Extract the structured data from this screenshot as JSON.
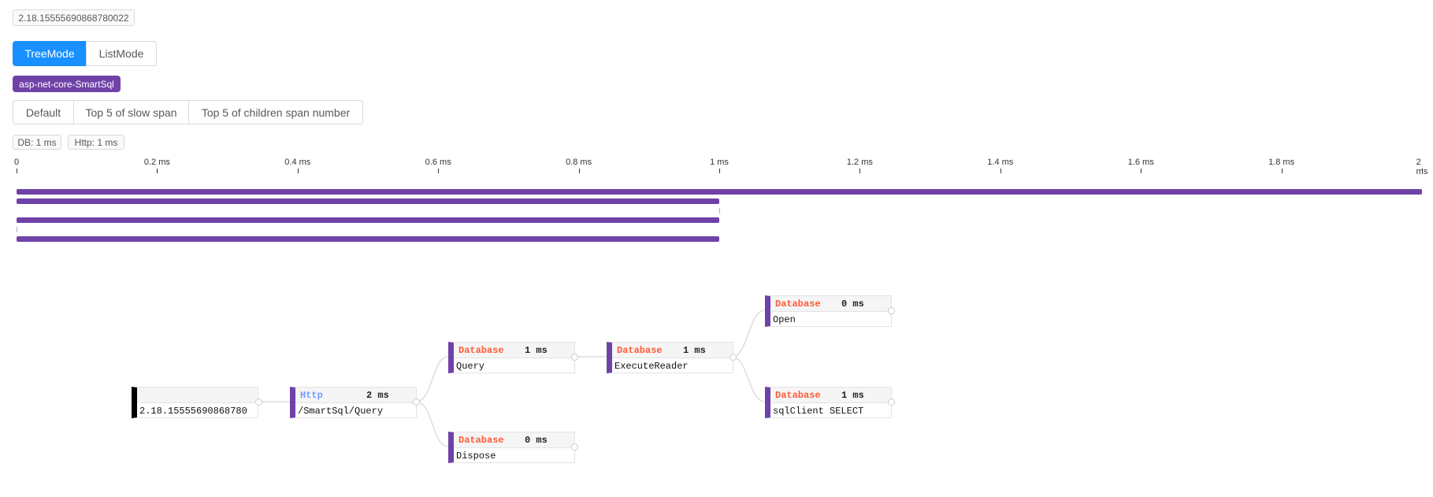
{
  "trace_id": "2.18.15555690868780022",
  "mode_tabs": [
    {
      "label": "TreeMode",
      "active": true
    },
    {
      "label": "ListMode",
      "active": false
    }
  ],
  "service_tag": "asp-net-core-SmartSql",
  "filters": [
    "Default",
    "Top 5 of slow span",
    "Top 5 of children span number"
  ],
  "stats": [
    "DB: 1 ms",
    "Http: 1 ms"
  ],
  "accent": "#6f42a8",
  "chart_data": {
    "type": "bar",
    "title": "",
    "xlabel": "",
    "ylabel": "",
    "xlim": [
      0,
      2
    ],
    "ticks": [
      "0",
      "0.2 ms",
      "0.4 ms",
      "0.6 ms",
      "0.8 ms",
      "1 ms",
      "1.2 ms",
      "1.4 ms",
      "1.6 ms",
      "1.8 ms",
      "2 ms"
    ],
    "tick_values": [
      0,
      0.2,
      0.4,
      0.6,
      0.8,
      1,
      1.2,
      1.4,
      1.6,
      1.8,
      2
    ],
    "spans": [
      {
        "start": 0,
        "end": 2
      },
      {
        "start": 0,
        "end": 1
      },
      {
        "start": 1,
        "end": 1
      },
      {
        "start": 0,
        "end": 1
      },
      {
        "start": 0,
        "end": 0
      },
      {
        "start": 0,
        "end": 1
      }
    ]
  },
  "tree": {
    "root": {
      "label": "2.18.15555690868780"
    },
    "nodes": [
      {
        "id": "http",
        "type": "Http",
        "time": "2 ms",
        "name": "/SmartSql/Query"
      },
      {
        "id": "query",
        "type": "Database",
        "time": "1 ms",
        "name": "Query"
      },
      {
        "id": "dispose",
        "type": "Database",
        "time": "0 ms",
        "name": "Dispose"
      },
      {
        "id": "exec",
        "type": "Database",
        "time": "1 ms",
        "name": "ExecuteReader"
      },
      {
        "id": "open",
        "type": "Database",
        "time": "0 ms",
        "name": "Open"
      },
      {
        "id": "select",
        "type": "Database",
        "time": "1 ms",
        "name": "sqlClient SELECT"
      }
    ]
  }
}
